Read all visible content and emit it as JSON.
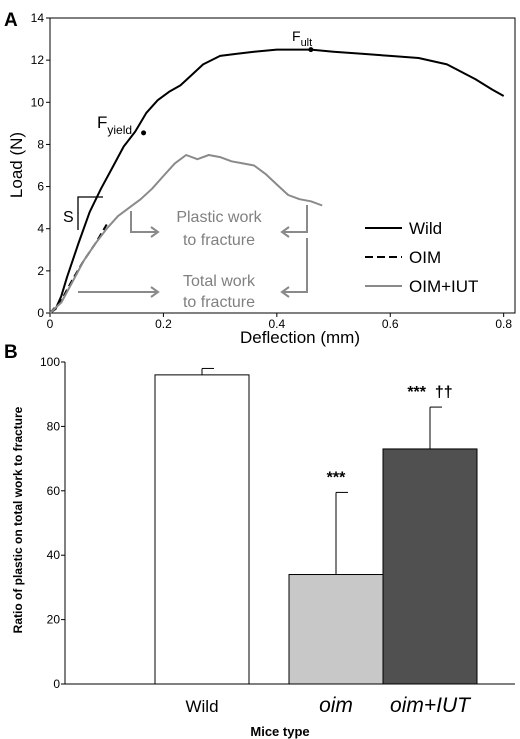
{
  "chart_data": [
    {
      "panel_label": "A",
      "type": "line",
      "xlabel": "Deflection (mm)",
      "ylabel": "Load (N)",
      "xlim": [
        0,
        0.82
      ],
      "ylim": [
        0,
        14
      ],
      "xticks": [
        "0",
        "0.2",
        "0.4",
        "0.6",
        "0.8"
      ],
      "yticks": [
        "0",
        "2",
        "4",
        "6",
        "8",
        "10",
        "12",
        "14"
      ],
      "legend_position": "bottom-right",
      "colors": {
        "Wild": "#000000",
        "OIM": "#000000",
        "OIM+IUT": "#8a8a8a"
      },
      "series": [
        {
          "name": "Wild",
          "style": "solid",
          "x": [
            0,
            0.01,
            0.02,
            0.03,
            0.05,
            0.07,
            0.09,
            0.11,
            0.13,
            0.15,
            0.17,
            0.19,
            0.21,
            0.23,
            0.25,
            0.27,
            0.3,
            0.33,
            0.36,
            0.4,
            0.43,
            0.46,
            0.5,
            0.55,
            0.6,
            0.65,
            0.7,
            0.75,
            0.78,
            0.8
          ],
          "y": [
            0,
            0.2,
            0.8,
            1.7,
            3.3,
            4.8,
            5.9,
            6.9,
            7.9,
            8.6,
            9.5,
            10.1,
            10.5,
            10.8,
            11.3,
            11.8,
            12.2,
            12.3,
            12.4,
            12.5,
            12.5,
            12.5,
            12.4,
            12.3,
            12.2,
            12.1,
            11.8,
            11.1,
            10.6,
            10.3
          ]
        },
        {
          "name": "OIM",
          "style": "dashed",
          "x": [
            0,
            0.02,
            0.04,
            0.06,
            0.08,
            0.1
          ],
          "y": [
            0,
            0.6,
            1.6,
            2.5,
            3.3,
            4.2
          ]
        },
        {
          "name": "OIM+IUT",
          "style": "solid",
          "x": [
            0,
            0.02,
            0.04,
            0.06,
            0.08,
            0.1,
            0.12,
            0.14,
            0.16,
            0.18,
            0.2,
            0.22,
            0.24,
            0.26,
            0.28,
            0.3,
            0.32,
            0.34,
            0.36,
            0.38,
            0.4,
            0.42,
            0.44,
            0.46,
            0.48
          ],
          "y": [
            0,
            0.5,
            1.5,
            2.5,
            3.3,
            4,
            4.6,
            5,
            5.4,
            5.9,
            6.5,
            7.1,
            7.5,
            7.3,
            7.5,
            7.4,
            7.2,
            7.1,
            7.0,
            6.6,
            6.1,
            5.6,
            5.4,
            5.3,
            5.1
          ]
        }
      ],
      "annotations": {
        "f_ult": {
          "label_main": "F",
          "label_sub": "ult",
          "x": 0.46,
          "y": 12.5
        },
        "f_yield": {
          "label_main": "F",
          "label_sub": "yield",
          "x": 0.165,
          "y": 8.55
        },
        "stiffness": "S",
        "plastic_work": [
          "Plastic work",
          "to fracture"
        ],
        "total_work": [
          "Total work",
          "to fracture"
        ]
      }
    },
    {
      "panel_label": "B",
      "type": "bar",
      "xlabel": "Mice type",
      "ylabel": "Ratio of plastic on total work to fracture",
      "ylim": [
        0,
        100
      ],
      "yticks": [
        "0",
        "20",
        "40",
        "60",
        "80",
        "100"
      ],
      "categories": [
        "Wild",
        "oim",
        "oim+IUT"
      ],
      "values": [
        96,
        34,
        73
      ],
      "errors": [
        2,
        25.5,
        13
      ],
      "bar_colors": [
        "#ffffff",
        "#c8c8c8",
        "#505050"
      ],
      "significance": [
        "",
        "***",
        "***  ††"
      ]
    }
  ]
}
